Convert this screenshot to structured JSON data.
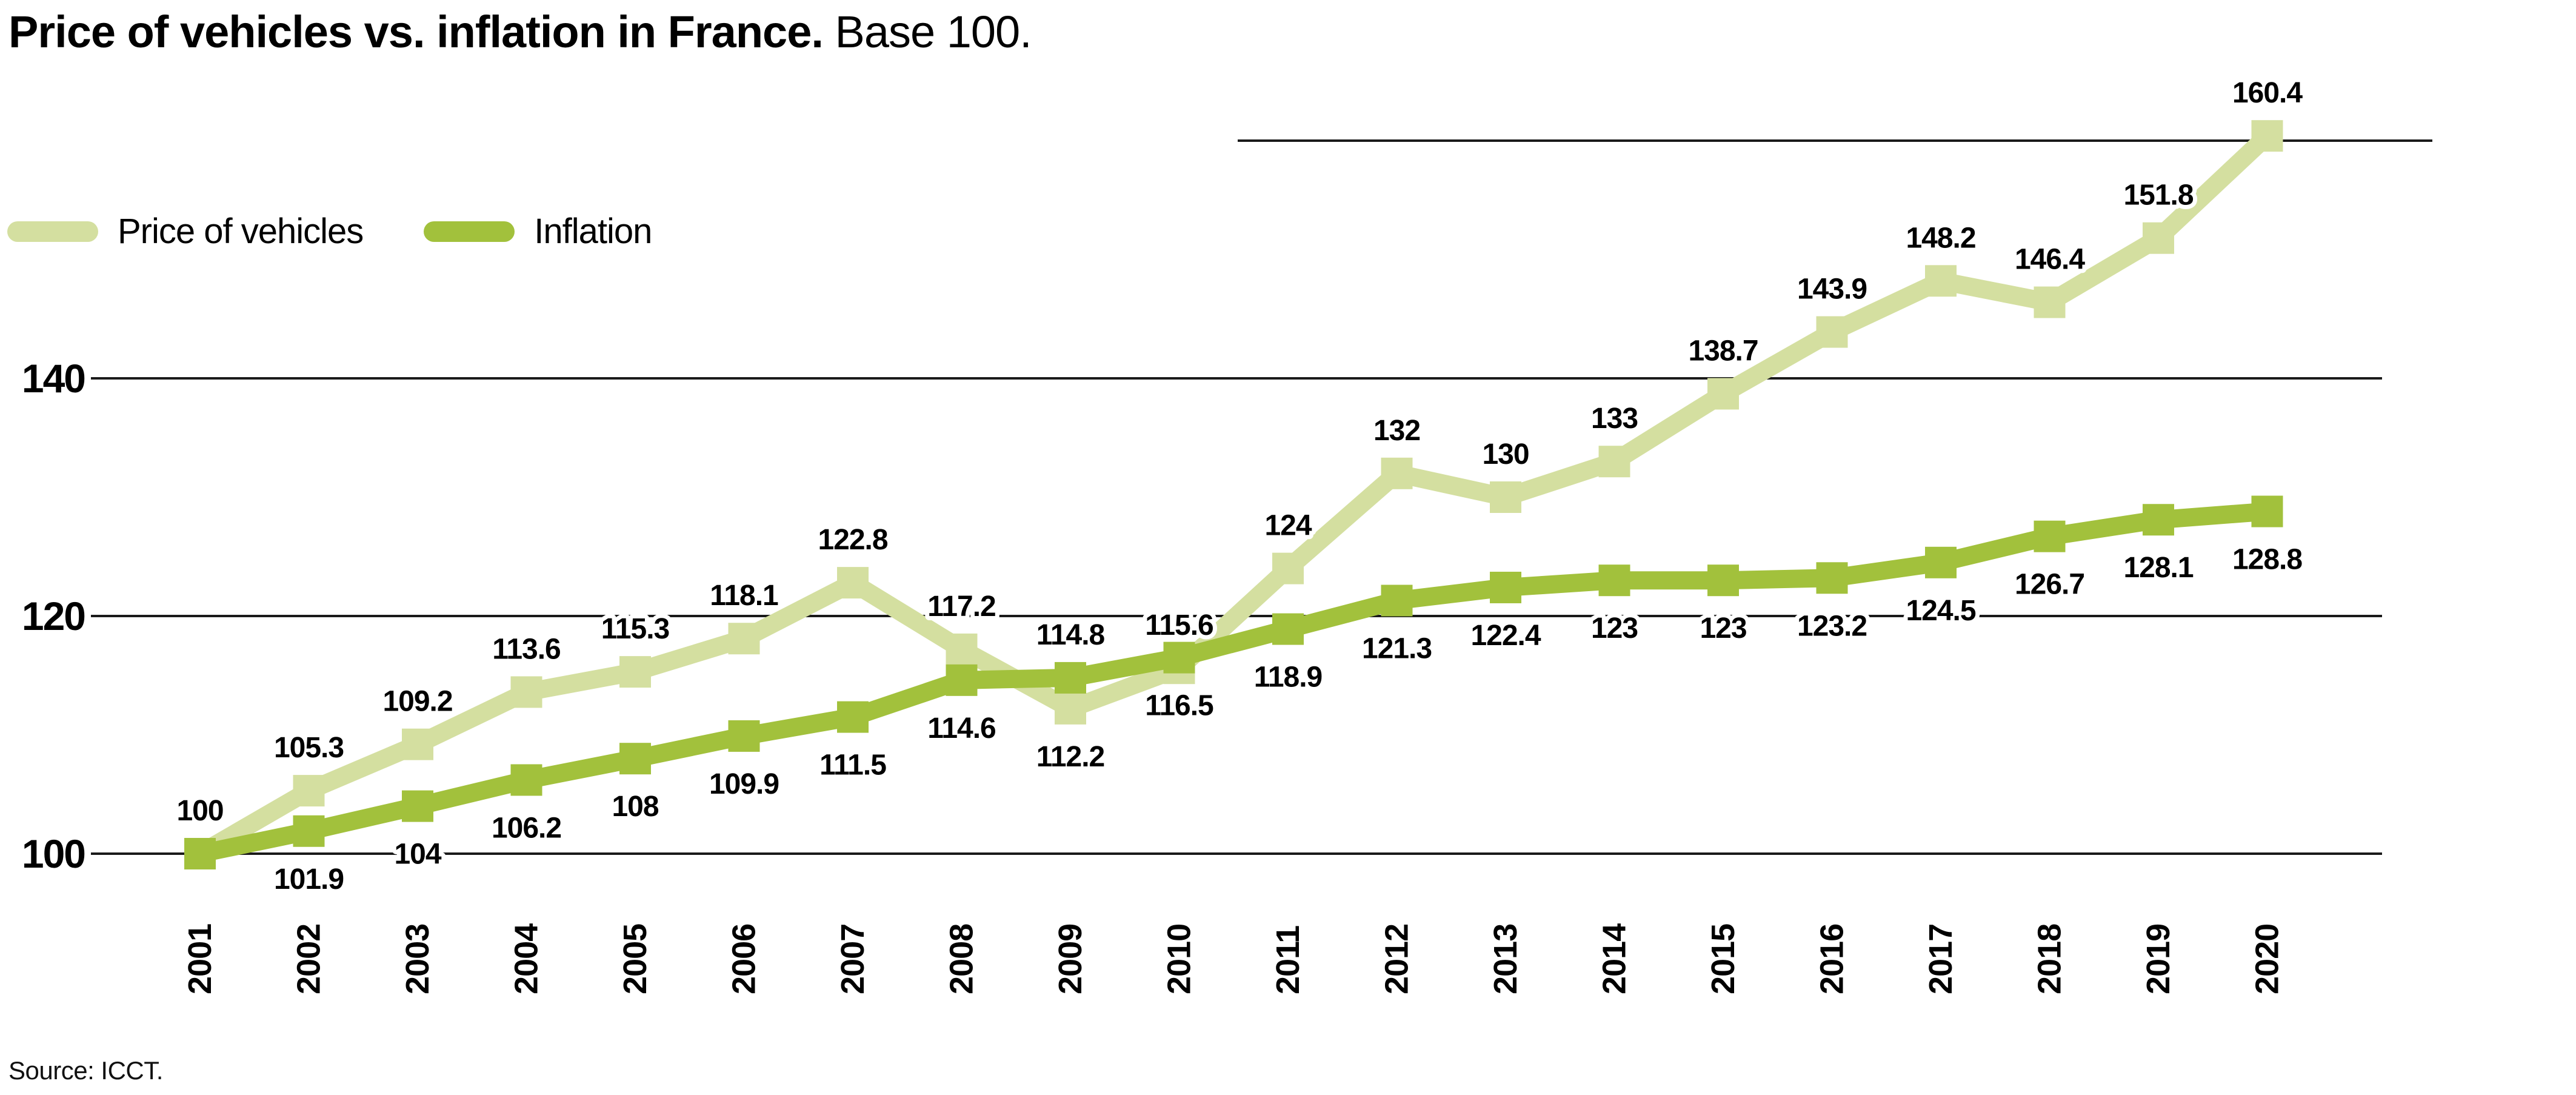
{
  "title": {
    "main": "Price of vehicles vs. inflation in France.",
    "subtitle": "Base 100."
  },
  "legend": [
    {
      "label": "Price of vehicles",
      "color": "#d4dfa0"
    },
    {
      "label": "Inflation",
      "color": "#a2c13c"
    }
  ],
  "source": "Source: ICCT.",
  "colors": {
    "price_of_vehicles": "#d4dfa0",
    "inflation": "#a2c13c",
    "gridline": "#1a1a1a",
    "text": "#000000",
    "background": "#ffffff"
  },
  "chart_data": {
    "type": "line",
    "title": "Price of vehicles vs. inflation in France.",
    "subtitle": "Base 100.",
    "x": [
      2001,
      2002,
      2003,
      2004,
      2005,
      2006,
      2007,
      2008,
      2009,
      2010,
      2011,
      2012,
      2013,
      2014,
      2015,
      2016,
      2017,
      2018,
      2019,
      2020
    ],
    "x_tick_labels": [
      "2001",
      "2002",
      "2003",
      "2004",
      "2005",
      "2006",
      "2007",
      "2008",
      "2009",
      "2010",
      "2011",
      "2012",
      "2013",
      "2014",
      "2015",
      "2016",
      "2017",
      "2018",
      "2019",
      "2020"
    ],
    "yticks": [
      100,
      120,
      140
    ],
    "partial_gridline_value": 160,
    "ylim": [
      95,
      165
    ],
    "grid": "horizontal",
    "legend_position": "top-left",
    "marker": "square",
    "series": [
      {
        "name": "Price of vehicles",
        "color": "#d4dfa0",
        "values": [
          100,
          105.3,
          109.2,
          113.6,
          115.3,
          118.1,
          122.8,
          117.2,
          112.2,
          115.6,
          124,
          132,
          130,
          133,
          138.7,
          143.9,
          148.2,
          146.4,
          151.8,
          160.4
        ],
        "labels": [
          "100",
          "105.3",
          "109.2",
          "113.6",
          "115.3",
          "118.1",
          "122.8",
          "117.2",
          "112.2",
          "115.6",
          "124",
          "132",
          "130",
          "133",
          "138.7",
          "143.9",
          "148.2",
          "146.4",
          "151.8",
          "160.4"
        ],
        "label_sides": [
          "above",
          "above",
          "above",
          "above",
          "above",
          "above",
          "above",
          "above",
          "below",
          "above",
          "above",
          "above",
          "above",
          "above",
          "above",
          "above",
          "above",
          "above",
          "above",
          "above"
        ]
      },
      {
        "name": "Inflation",
        "color": "#a2c13c",
        "values": [
          100,
          101.9,
          104,
          106.2,
          108,
          109.9,
          111.5,
          114.6,
          114.8,
          116.5,
          118.9,
          121.3,
          122.4,
          123,
          123,
          123.2,
          124.5,
          126.7,
          128.1,
          128.8
        ],
        "labels": [
          null,
          "101.9",
          "104",
          "106.2",
          "108",
          "109.9",
          "111.5",
          "114.6",
          "114.8",
          "116.5",
          "118.9",
          "121.3",
          "122.4",
          "123",
          "123",
          "123.2",
          "124.5",
          "126.7",
          "128.1",
          "128.8"
        ],
        "label_sides": [
          null,
          "below",
          "below",
          "below",
          "below",
          "below",
          "below",
          "below",
          "above",
          "below",
          "below",
          "below",
          "below",
          "below",
          "below",
          "below",
          "below",
          "below",
          "below",
          "below"
        ]
      }
    ]
  }
}
